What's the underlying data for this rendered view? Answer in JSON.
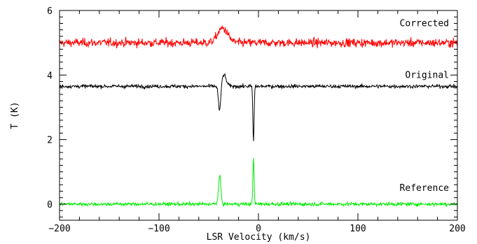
{
  "chart_data": {
    "type": "line",
    "title": "",
    "xlabel": "LSR Velocity (km/s)",
    "ylabel": "T (K)",
    "xlim": [
      -200,
      200
    ],
    "ylim": [
      -0.5,
      6
    ],
    "x_ticks": [
      -200,
      -100,
      0,
      100,
      200
    ],
    "x_tick_labels": [
      "−200",
      "−100",
      "0",
      "100",
      "200"
    ],
    "y_ticks": [
      0,
      2,
      4,
      6
    ],
    "y_tick_labels": [
      "0",
      "2",
      "4",
      "6"
    ],
    "grid": false,
    "legend": "none",
    "series": [
      {
        "name": "Corrected",
        "color": "#ff0000",
        "baseline": 5.0,
        "noise": 0.12,
        "features": [
          {
            "center": -36,
            "width": 5,
            "amplitude": 0.45
          }
        ]
      },
      {
        "name": "Original",
        "color": "#000000",
        "baseline": 3.65,
        "noise": 0.05,
        "features": [
          {
            "center": -39,
            "width": 1.2,
            "amplitude": -0.85
          },
          {
            "center": -35,
            "width": 2.5,
            "amplitude": 0.35
          },
          {
            "center": -5,
            "width": 0.6,
            "amplitude": -1.75
          }
        ]
      },
      {
        "name": "Reference",
        "color": "#00ee00",
        "baseline": 0.0,
        "noise": 0.05,
        "features": [
          {
            "center": -39,
            "width": 1.2,
            "amplitude": 0.85
          },
          {
            "center": -5,
            "width": 0.6,
            "amplitude": 1.45
          }
        ]
      }
    ]
  }
}
